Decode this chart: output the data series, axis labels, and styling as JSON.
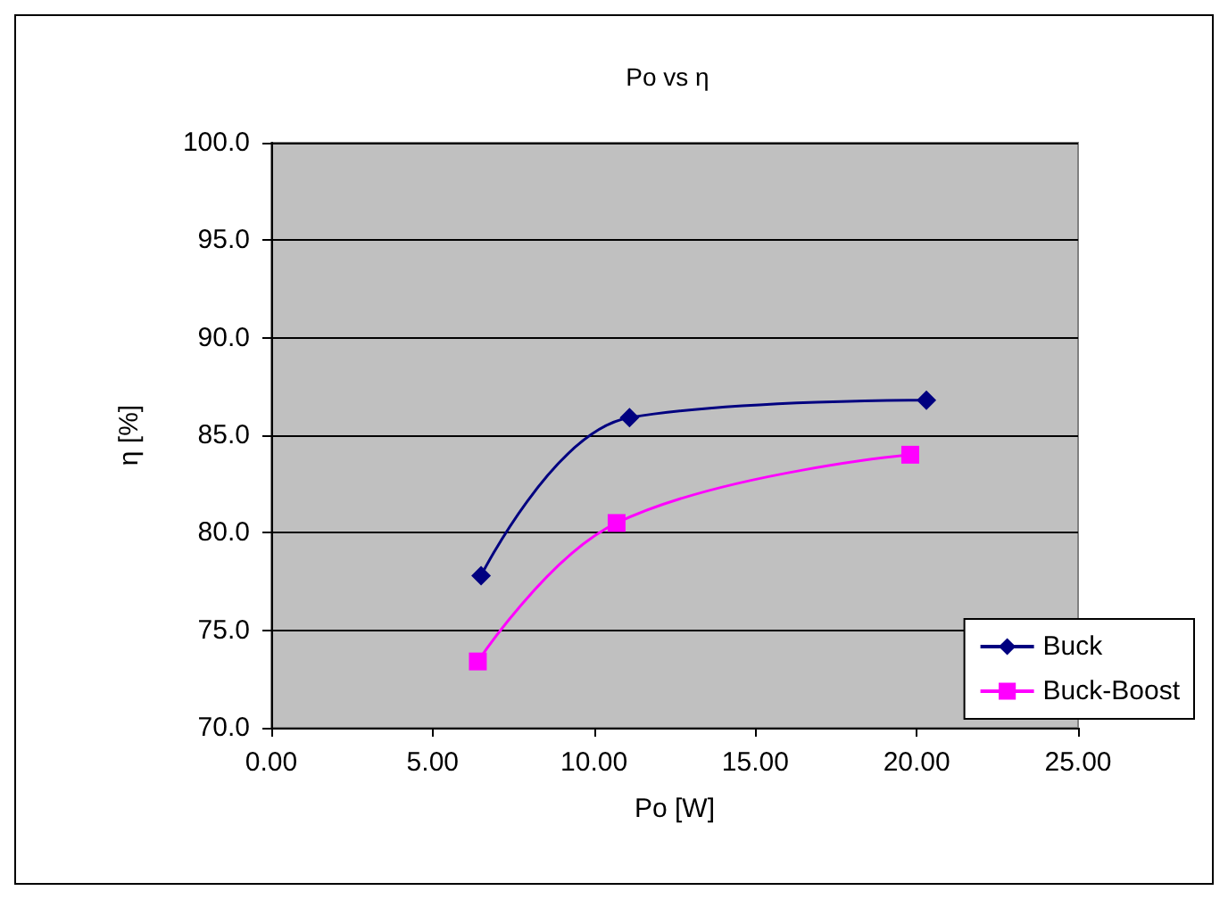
{
  "chart_data": {
    "type": "line",
    "title": "Po vs η",
    "xlabel": "Po [W]",
    "ylabel": "η [%]",
    "xlim": [
      0,
      25
    ],
    "xticks": [
      {
        "value": 0,
        "label": "0.00"
      },
      {
        "value": 5,
        "label": "5.00"
      },
      {
        "value": 10,
        "label": "10.00"
      },
      {
        "value": 15,
        "label": "15.00"
      },
      {
        "value": 20,
        "label": "20.00"
      },
      {
        "value": 25,
        "label": "25.00"
      }
    ],
    "ylim": [
      70,
      100
    ],
    "yticks": [
      {
        "value": 70,
        "label": "70.0"
      },
      {
        "value": 75,
        "label": "75.0"
      },
      {
        "value": 80,
        "label": "80.0"
      },
      {
        "value": 85,
        "label": "85.0"
      },
      {
        "value": 90,
        "label": "90.0"
      },
      {
        "value": 95,
        "label": "95.0"
      },
      {
        "value": 100,
        "label": "100.0"
      }
    ],
    "grid": "y",
    "legend": "bottom right",
    "series": [
      {
        "name": "Buck",
        "color": "#000080",
        "marker": "diamond",
        "x": [
          6.5,
          11.1,
          20.3
        ],
        "values": [
          77.8,
          85.9,
          86.8
        ]
      },
      {
        "name": "Buck-Boost",
        "color": "#ff00ff",
        "marker": "square",
        "x": [
          6.4,
          10.7,
          19.8
        ],
        "values": [
          73.4,
          80.5,
          84.0
        ]
      }
    ]
  }
}
